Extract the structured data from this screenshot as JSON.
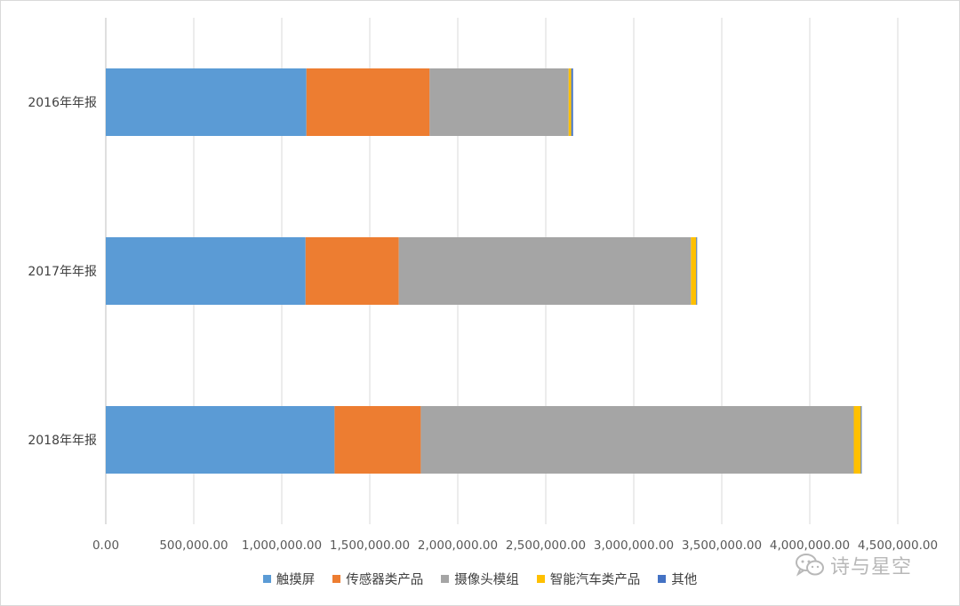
{
  "chart_data": {
    "type": "bar",
    "orientation": "horizontal",
    "stacked": true,
    "categories": [
      "2016年年报",
      "2017年年报",
      "2018年年报"
    ],
    "series": [
      {
        "name": "触摸屏",
        "color": "#5b9bd5",
        "values": [
          1140000,
          1135000,
          1300000
        ]
      },
      {
        "name": "传感器类产品",
        "color": "#ed7d31",
        "values": [
          700000,
          530000,
          490000
        ]
      },
      {
        "name": "摄像头模组",
        "color": "#a5a5a5",
        "values": [
          790000,
          1660000,
          2460000
        ]
      },
      {
        "name": "智能汽车类产品",
        "color": "#ffc000",
        "values": [
          15000,
          30000,
          40000
        ]
      },
      {
        "name": "其他",
        "color": "#4472c4",
        "values": [
          10000,
          5000,
          5000
        ]
      }
    ],
    "xlim": [
      0,
      4500000
    ],
    "x_ticks": [
      0,
      500000,
      1000000,
      1500000,
      2000000,
      2500000,
      3000000,
      3500000,
      4000000,
      4500000
    ],
    "x_tick_labels": [
      "0.00",
      "500,000.00",
      "1,000,000.00",
      "1,500,000.00",
      "2,000,000.00",
      "2,500,000.00",
      "3,000,000.00",
      "3,500,000.00",
      "4,000,000.00",
      "4,500,000.00"
    ],
    "grid": "vertical",
    "legend_position": "bottom",
    "title": "",
    "xlabel": "",
    "ylabel": ""
  },
  "watermark": {
    "text": "诗与星空",
    "icon": "wechat-icon"
  }
}
